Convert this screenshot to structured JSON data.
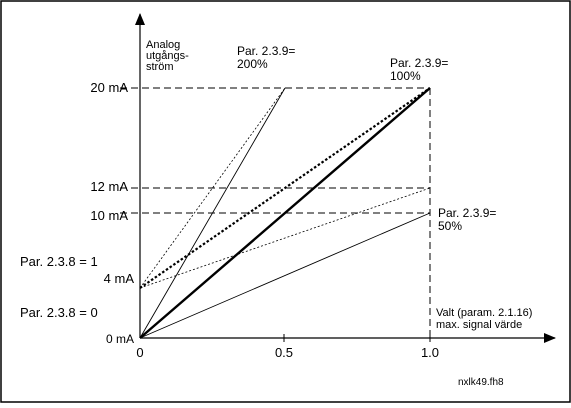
{
  "diagram": {
    "y_axis_label": [
      "Analog",
      "utgångs-",
      "ström"
    ],
    "y_ticks": [
      "20 mA",
      "12 mA",
      "10 mA",
      "4 mA",
      "0 mA"
    ],
    "x_ticks": [
      "0",
      "0.5",
      "1.0"
    ],
    "line_labels": {
      "p200": [
        "Par. 2.3.9=",
        "200%"
      ],
      "p100": [
        "Par. 2.3.9=",
        "100%"
      ],
      "p50": [
        "Par. 2.3.9=",
        "50%"
      ],
      "offset1": "Par. 2.3.8 = 1",
      "offset0": "Par. 2.3.8 = 0"
    },
    "x_axis_note": [
      "Valt (param. 2.1.16)",
      "max. signal värde"
    ],
    "figure_id": "nxlk49.fh8"
  },
  "chart_data": {
    "type": "line",
    "x_ticks": [
      0,
      0.5,
      1.0
    ],
    "y_ticks_mA": [
      0,
      4,
      10,
      12,
      20
    ],
    "series": [
      {
        "name": "Par. 2.3.9= 200%",
        "x": [
          0,
          0.5
        ],
        "y": [
          0,
          20
        ],
        "style": "solid-thin"
      },
      {
        "name": "Par. 2.3.9= 100%",
        "x": [
          0,
          1.0
        ],
        "y": [
          0,
          20
        ],
        "style": "solid-thick"
      },
      {
        "name": "Par. 2.3.9= 50%",
        "x": [
          0,
          1.0
        ],
        "y": [
          0,
          10
        ],
        "style": "solid-thin"
      },
      {
        "name": "",
        "x": [
          0,
          0.5
        ],
        "y": [
          4,
          20
        ],
        "style": "dotted-thin"
      },
      {
        "name": "",
        "x": [
          0,
          1.0
        ],
        "y": [
          4,
          20
        ],
        "style": "dotted-thick"
      },
      {
        "name": "",
        "x": [
          0,
          1.0
        ],
        "y": [
          4,
          12
        ],
        "style": "dotted-thin"
      }
    ],
    "reference_lines": {
      "y_mA": [
        20,
        12,
        10
      ],
      "x": [
        1.0
      ]
    }
  }
}
